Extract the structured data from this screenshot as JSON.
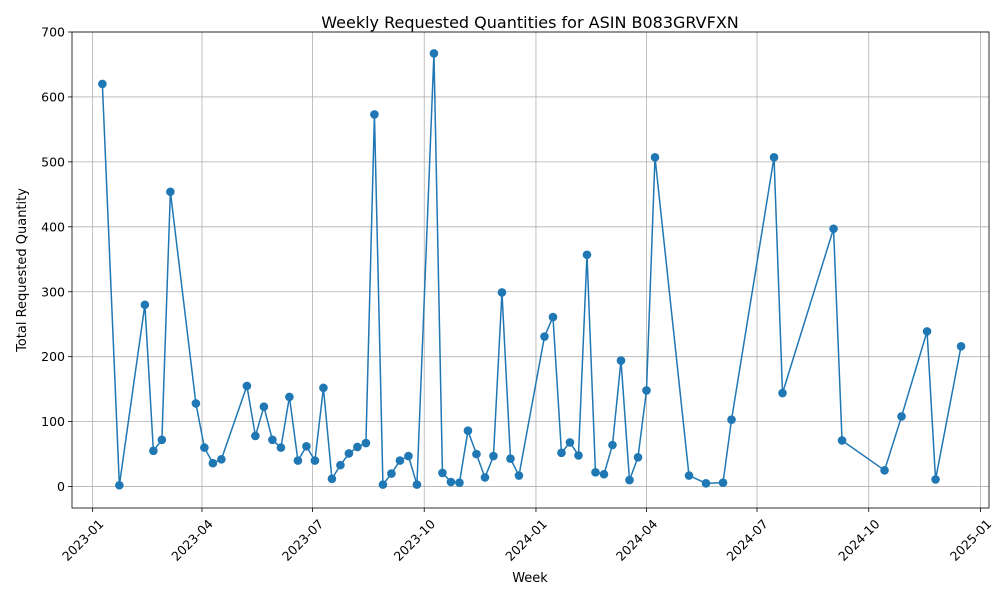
{
  "chart_data": {
    "type": "line",
    "title": "Weekly Requested Quantities for ASIN B083GRVFXN",
    "xlabel": "Week",
    "ylabel": "Total Requested Quantity",
    "xlim": [
      "2022-12-15",
      "2025-01-08"
    ],
    "ylim": [
      -33,
      700
    ],
    "y_ticks": [
      0,
      100,
      200,
      300,
      400,
      500,
      600,
      700
    ],
    "x_ticks": [
      "2023-01",
      "2023-04",
      "2023-07",
      "2023-10",
      "2024-01",
      "2024-04",
      "2024-07",
      "2024-10",
      "2025-01"
    ],
    "x_tick_dates": [
      "2023-01-01",
      "2023-04-01",
      "2023-07-01",
      "2023-10-01",
      "2024-01-01",
      "2024-04-01",
      "2024-07-01",
      "2024-10-01",
      "2025-01-01"
    ],
    "grid": true,
    "series_color": "#1f77b4",
    "series": [
      {
        "points": [
          [
            "2023-01-09",
            620
          ],
          [
            "2023-01-23",
            2
          ],
          [
            "2023-02-13",
            280
          ],
          [
            "2023-02-20",
            55
          ],
          [
            "2023-02-27",
            72
          ],
          [
            "2023-03-06",
            454
          ],
          [
            "2023-03-27",
            128
          ],
          [
            "2023-04-03",
            60
          ],
          [
            "2023-04-10",
            36
          ],
          [
            "2023-04-17",
            42
          ],
          [
            "2023-05-08",
            155
          ],
          [
            "2023-05-15",
            78
          ],
          [
            "2023-05-22",
            123
          ],
          [
            "2023-05-29",
            72
          ],
          [
            "2023-06-05",
            60
          ],
          [
            "2023-06-12",
            138
          ],
          [
            "2023-06-19",
            40
          ],
          [
            "2023-06-26",
            62
          ],
          [
            "2023-07-03",
            40
          ],
          [
            "2023-07-10",
            152
          ],
          [
            "2023-07-17",
            12
          ],
          [
            "2023-07-24",
            33
          ],
          [
            "2023-07-31",
            51
          ],
          [
            "2023-08-07",
            61
          ],
          [
            "2023-08-14",
            67
          ],
          [
            "2023-08-21",
            573
          ],
          [
            "2023-08-28",
            3
          ],
          [
            "2023-09-04",
            20
          ],
          [
            "2023-09-11",
            40
          ],
          [
            "2023-09-18",
            47
          ],
          [
            "2023-09-25",
            3
          ],
          [
            "2023-10-09",
            667
          ],
          [
            "2023-10-16",
            21
          ],
          [
            "2023-10-23",
            7
          ],
          [
            "2023-10-30",
            6
          ],
          [
            "2023-11-06",
            86
          ],
          [
            "2023-11-13",
            50
          ],
          [
            "2023-11-20",
            14
          ],
          [
            "2023-11-27",
            47
          ],
          [
            "2023-12-04",
            299
          ],
          [
            "2023-12-11",
            43
          ],
          [
            "2023-12-18",
            17
          ],
          [
            "2024-01-08",
            231
          ],
          [
            "2024-01-15",
            261
          ],
          [
            "2024-01-22",
            52
          ],
          [
            "2024-01-29",
            68
          ],
          [
            "2024-02-05",
            48
          ],
          [
            "2024-02-12",
            357
          ],
          [
            "2024-02-19",
            22
          ],
          [
            "2024-02-26",
            19
          ],
          [
            "2024-03-04",
            64
          ],
          [
            "2024-03-11",
            194
          ],
          [
            "2024-03-18",
            10
          ],
          [
            "2024-03-25",
            45
          ],
          [
            "2024-04-01",
            148
          ],
          [
            "2024-04-08",
            507
          ],
          [
            "2024-05-06",
            17
          ],
          [
            "2024-05-20",
            5
          ],
          [
            "2024-06-03",
            6
          ],
          [
            "2024-06-10",
            103
          ],
          [
            "2024-07-15",
            507
          ],
          [
            "2024-07-22",
            144
          ],
          [
            "2024-09-02",
            397
          ],
          [
            "2024-09-09",
            71
          ],
          [
            "2024-10-14",
            25
          ],
          [
            "2024-10-28",
            108
          ],
          [
            "2024-11-18",
            239
          ],
          [
            "2024-11-25",
            11
          ],
          [
            "2024-12-16",
            216
          ]
        ]
      }
    ]
  }
}
